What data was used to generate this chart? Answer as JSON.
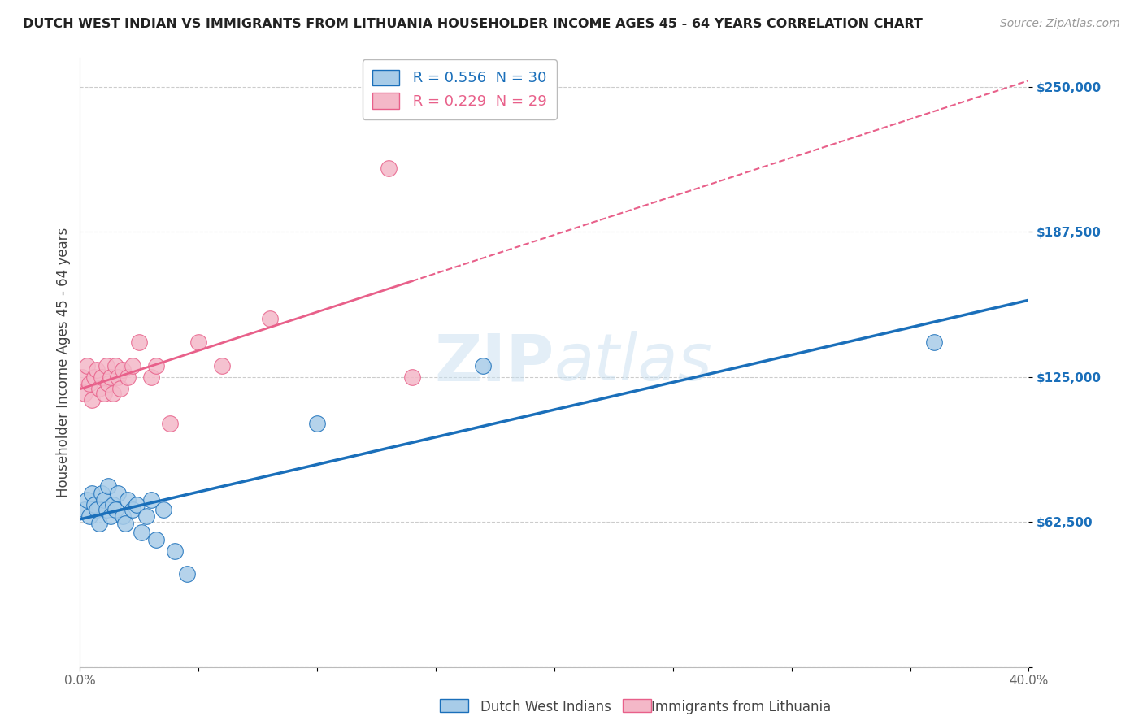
{
  "title": "DUTCH WEST INDIAN VS IMMIGRANTS FROM LITHUANIA HOUSEHOLDER INCOME AGES 45 - 64 YEARS CORRELATION CHART",
  "source": "Source: ZipAtlas.com",
  "ylabel": "Householder Income Ages 45 - 64 years",
  "xlim": [
    0.0,
    0.4
  ],
  "ylim": [
    0,
    262500
  ],
  "xticks": [
    0.0,
    0.05,
    0.1,
    0.15,
    0.2,
    0.25,
    0.3,
    0.35,
    0.4
  ],
  "xticklabels": [
    "0.0%",
    "",
    "",
    "",
    "",
    "",
    "",
    "",
    "40.0%"
  ],
  "ytick_positions": [
    0,
    62500,
    125000,
    187500,
    250000
  ],
  "ytick_labels": [
    "",
    "$62,500",
    "$125,000",
    "$187,500",
    "$250,000"
  ],
  "legend1_label": "Dutch West Indians",
  "legend2_label": "Immigrants from Lithuania",
  "R1": 0.556,
  "N1": 30,
  "R2": 0.229,
  "N2": 29,
  "color_blue": "#a8cce8",
  "color_pink": "#f4b8c8",
  "line_blue": "#1a6fba",
  "line_pink": "#e8608a",
  "watermark_zip": "ZIP",
  "watermark_atlas": "atlas",
  "blue_x": [
    0.002,
    0.003,
    0.004,
    0.005,
    0.006,
    0.007,
    0.008,
    0.009,
    0.01,
    0.011,
    0.012,
    0.013,
    0.014,
    0.015,
    0.016,
    0.018,
    0.019,
    0.02,
    0.022,
    0.024,
    0.026,
    0.028,
    0.03,
    0.032,
    0.035,
    0.04,
    0.045,
    0.1,
    0.17,
    0.36
  ],
  "blue_y": [
    68000,
    72000,
    65000,
    75000,
    70000,
    68000,
    62000,
    75000,
    72000,
    68000,
    78000,
    65000,
    70000,
    68000,
    75000,
    65000,
    62000,
    72000,
    68000,
    70000,
    58000,
    65000,
    72000,
    55000,
    68000,
    50000,
    40000,
    105000,
    130000,
    140000
  ],
  "pink_x": [
    0.001,
    0.002,
    0.003,
    0.004,
    0.005,
    0.006,
    0.007,
    0.008,
    0.009,
    0.01,
    0.011,
    0.012,
    0.013,
    0.014,
    0.015,
    0.016,
    0.017,
    0.018,
    0.02,
    0.022,
    0.025,
    0.03,
    0.032,
    0.038,
    0.05,
    0.06,
    0.08,
    0.13,
    0.14
  ],
  "pink_y": [
    125000,
    118000,
    130000,
    122000,
    115000,
    125000,
    128000,
    120000,
    125000,
    118000,
    130000,
    122000,
    125000,
    118000,
    130000,
    125000,
    120000,
    128000,
    125000,
    130000,
    140000,
    125000,
    130000,
    105000,
    140000,
    130000,
    150000,
    215000,
    125000
  ]
}
